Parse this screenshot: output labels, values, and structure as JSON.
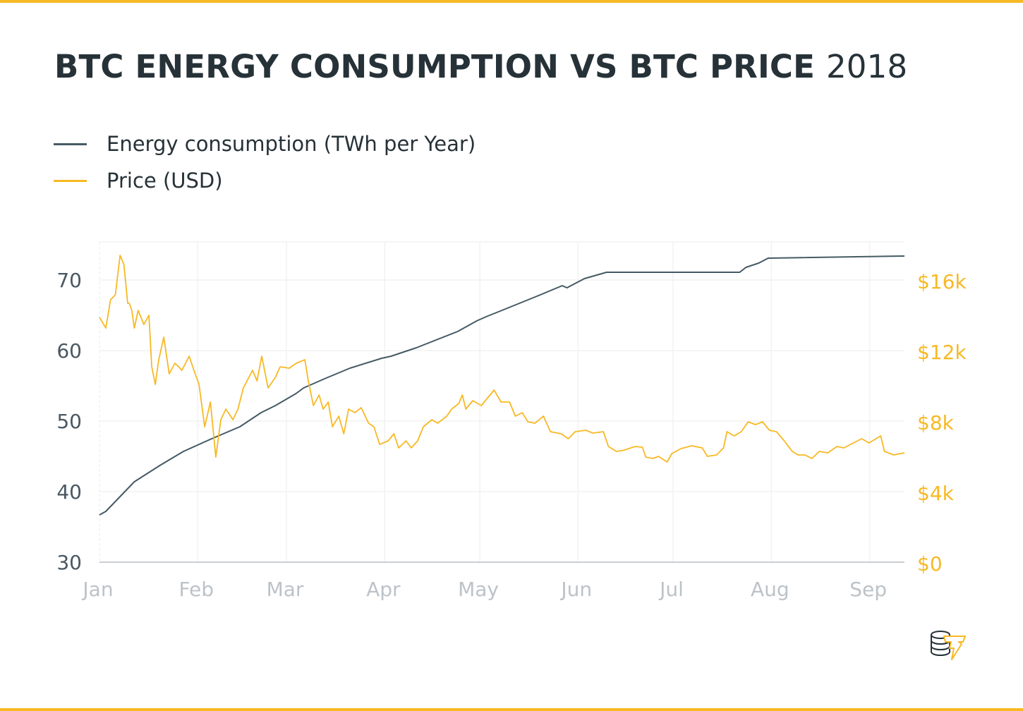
{
  "title": {
    "main": "BTC ENERGY CONSUMPTION VS BTC PRICE",
    "year": "2018"
  },
  "colors": {
    "energy": "#455a64",
    "price": "#f7b924",
    "left_axis": "#4a5862",
    "month_axis": "#bcc3c8",
    "grid": "#f2f2f2",
    "accent": "#f7b924"
  },
  "logo": {
    "icon": "coin-stack-lightning-icon"
  },
  "chart_data": {
    "type": "line",
    "title": "BTC ENERGY CONSUMPTION VS BTC PRICE 2018",
    "xlabel": "",
    "ylabel": "Energy consumption (TWh per Year)",
    "y2label": "Price (USD)",
    "x_unit": "day of 2018 (0 = Jan 1)",
    "xlim": [
      0,
      254
    ],
    "ylim": [
      30,
      75
    ],
    "y2lim": [
      0,
      18000
    ],
    "grid": true,
    "legend_position": "top-left",
    "x_ticks": [
      {
        "day": 0,
        "label": "Jan"
      },
      {
        "day": 31,
        "label": "Feb"
      },
      {
        "day": 59,
        "label": "Mar"
      },
      {
        "day": 90,
        "label": "Apr"
      },
      {
        "day": 120,
        "label": "May"
      },
      {
        "day": 151,
        "label": "Jun"
      },
      {
        "day": 181,
        "label": "Jul"
      },
      {
        "day": 212,
        "label": "Aug"
      },
      {
        "day": 243,
        "label": "Sep"
      }
    ],
    "y_ticks": [
      {
        "value": 30,
        "label": "30"
      },
      {
        "value": 40,
        "label": "40"
      },
      {
        "value": 50,
        "label": "50"
      },
      {
        "value": 60,
        "label": "60"
      },
      {
        "value": 70,
        "label": "70"
      }
    ],
    "y2_ticks": [
      {
        "value": 0,
        "label": "$0"
      },
      {
        "value": 4000,
        "label": "$4k"
      },
      {
        "value": 8000,
        "label": "$8k"
      },
      {
        "value": 12000,
        "label": "$12k"
      },
      {
        "value": 16000,
        "label": "$16k"
      }
    ],
    "series": [
      {
        "name": "Energy consumption (TWh per Year)",
        "axis": "left",
        "points": [
          [
            0,
            36.7
          ],
          [
            2,
            37.2
          ],
          [
            11,
            41.4
          ],
          [
            19,
            43.7
          ],
          [
            26.5,
            45.7
          ],
          [
            35.4,
            47.5
          ],
          [
            44.3,
            49.2
          ],
          [
            51,
            51.2
          ],
          [
            55.5,
            52.2
          ],
          [
            62,
            53.9
          ],
          [
            64.4,
            54.7
          ],
          [
            71,
            56
          ],
          [
            79,
            57.5
          ],
          [
            89,
            58.9
          ],
          [
            92,
            59.2
          ],
          [
            100,
            60.4
          ],
          [
            113,
            62.7
          ],
          [
            119,
            64.2
          ],
          [
            122,
            64.8
          ],
          [
            127,
            65.7
          ],
          [
            138,
            67.7
          ],
          [
            146,
            69.2
          ],
          [
            147.5,
            68.9
          ],
          [
            153,
            70.2
          ],
          [
            160,
            71.1
          ],
          [
            202,
            71.1
          ],
          [
            204,
            71.8
          ],
          [
            208,
            72.4
          ],
          [
            211,
            73.1
          ],
          [
            254,
            73.4
          ]
        ]
      },
      {
        "name": "Price (USD)",
        "axis": "right",
        "points": [
          [
            0,
            13880
          ],
          [
            2,
            13280
          ],
          [
            3.5,
            14880
          ],
          [
            5,
            15160
          ],
          [
            6.5,
            17400
          ],
          [
            7.7,
            16880
          ],
          [
            8.9,
            14680
          ],
          [
            9.4,
            14680
          ],
          [
            10.2,
            14280
          ],
          [
            11,
            13280
          ],
          [
            12.2,
            14280
          ],
          [
            14,
            13480
          ],
          [
            15.6,
            14000
          ],
          [
            16.5,
            11080
          ],
          [
            17.6,
            10080
          ],
          [
            18.7,
            11480
          ],
          [
            20.3,
            12760
          ],
          [
            22,
            10680
          ],
          [
            23.8,
            11280
          ],
          [
            25,
            11080
          ],
          [
            26,
            10880
          ],
          [
            28.3,
            11680
          ],
          [
            29.8,
            10880
          ],
          [
            31.4,
            10080
          ],
          [
            33.2,
            7680
          ],
          [
            35,
            9080
          ],
          [
            36.7,
            5960
          ],
          [
            38.3,
            8080
          ],
          [
            39.9,
            8680
          ],
          [
            42.1,
            8080
          ],
          [
            43.7,
            8680
          ],
          [
            45.4,
            9880
          ],
          [
            48.3,
            10880
          ],
          [
            49.7,
            10280
          ],
          [
            51.2,
            11680
          ],
          [
            53.2,
            9880
          ],
          [
            55.5,
            10480
          ],
          [
            57,
            11080
          ],
          [
            59.9,
            11000
          ],
          [
            62.1,
            11280
          ],
          [
            64.8,
            11480
          ],
          [
            65.9,
            10280
          ],
          [
            67.5,
            8880
          ],
          [
            69.3,
            9480
          ],
          [
            70.6,
            8680
          ],
          [
            72.2,
            9080
          ],
          [
            73.5,
            7680
          ],
          [
            75.5,
            8280
          ],
          [
            77.1,
            7280
          ],
          [
            78.6,
            8680
          ],
          [
            80.6,
            8480
          ],
          [
            82.6,
            8760
          ],
          [
            84.9,
            7880
          ],
          [
            86.6,
            7680
          ],
          [
            88.4,
            6680
          ],
          [
            91.1,
            6880
          ],
          [
            92.9,
            7280
          ],
          [
            94.4,
            6480
          ],
          [
            96.7,
            6880
          ],
          [
            98.4,
            6480
          ],
          [
            100.4,
            6880
          ],
          [
            102.2,
            7680
          ],
          [
            104.9,
            8080
          ],
          [
            106.7,
            7880
          ],
          [
            109.6,
            8280
          ],
          [
            111.1,
            8680
          ],
          [
            113.4,
            9000
          ],
          [
            114.5,
            9480
          ],
          [
            115.6,
            8680
          ],
          [
            117.8,
            9160
          ],
          [
            120.5,
            8880
          ],
          [
            122.3,
            9280
          ],
          [
            124.5,
            9760
          ],
          [
            126.7,
            9080
          ],
          [
            129.4,
            9080
          ],
          [
            131.2,
            8280
          ],
          [
            133.4,
            8480
          ],
          [
            135.2,
            7960
          ],
          [
            137.4,
            7880
          ],
          [
            140.1,
            8280
          ],
          [
            142.3,
            7400
          ],
          [
            145.7,
            7280
          ],
          [
            147.9,
            7000
          ],
          [
            150.1,
            7400
          ],
          [
            153.5,
            7480
          ],
          [
            155.7,
            7320
          ],
          [
            159,
            7400
          ],
          [
            160.6,
            6560
          ],
          [
            163.1,
            6280
          ],
          [
            165.7,
            6360
          ],
          [
            169,
            6560
          ],
          [
            171.3,
            6520
          ],
          [
            172.4,
            5960
          ],
          [
            174.6,
            5880
          ],
          [
            176.4,
            6000
          ],
          [
            179.1,
            5680
          ],
          [
            180.6,
            6160
          ],
          [
            183.5,
            6440
          ],
          [
            186.9,
            6600
          ],
          [
            190.2,
            6480
          ],
          [
            191.8,
            6000
          ],
          [
            194.7,
            6080
          ],
          [
            196.9,
            6480
          ],
          [
            198,
            7400
          ],
          [
            200.3,
            7160
          ],
          [
            202.5,
            7400
          ],
          [
            204.7,
            7960
          ],
          [
            207,
            7800
          ],
          [
            209.2,
            7960
          ],
          [
            211.4,
            7480
          ],
          [
            213.6,
            7400
          ],
          [
            215.9,
            6920
          ],
          [
            218.6,
            6280
          ],
          [
            220.4,
            6080
          ],
          [
            222.6,
            6080
          ],
          [
            224.8,
            5880
          ],
          [
            227.1,
            6280
          ],
          [
            229.8,
            6200
          ],
          [
            232.7,
            6560
          ],
          [
            234.9,
            6480
          ],
          [
            238.3,
            6800
          ],
          [
            240.5,
            7000
          ],
          [
            242.8,
            6760
          ],
          [
            246.5,
            7160
          ],
          [
            247.7,
            6280
          ],
          [
            250.6,
            6080
          ],
          [
            254,
            6200
          ]
        ]
      }
    ]
  }
}
